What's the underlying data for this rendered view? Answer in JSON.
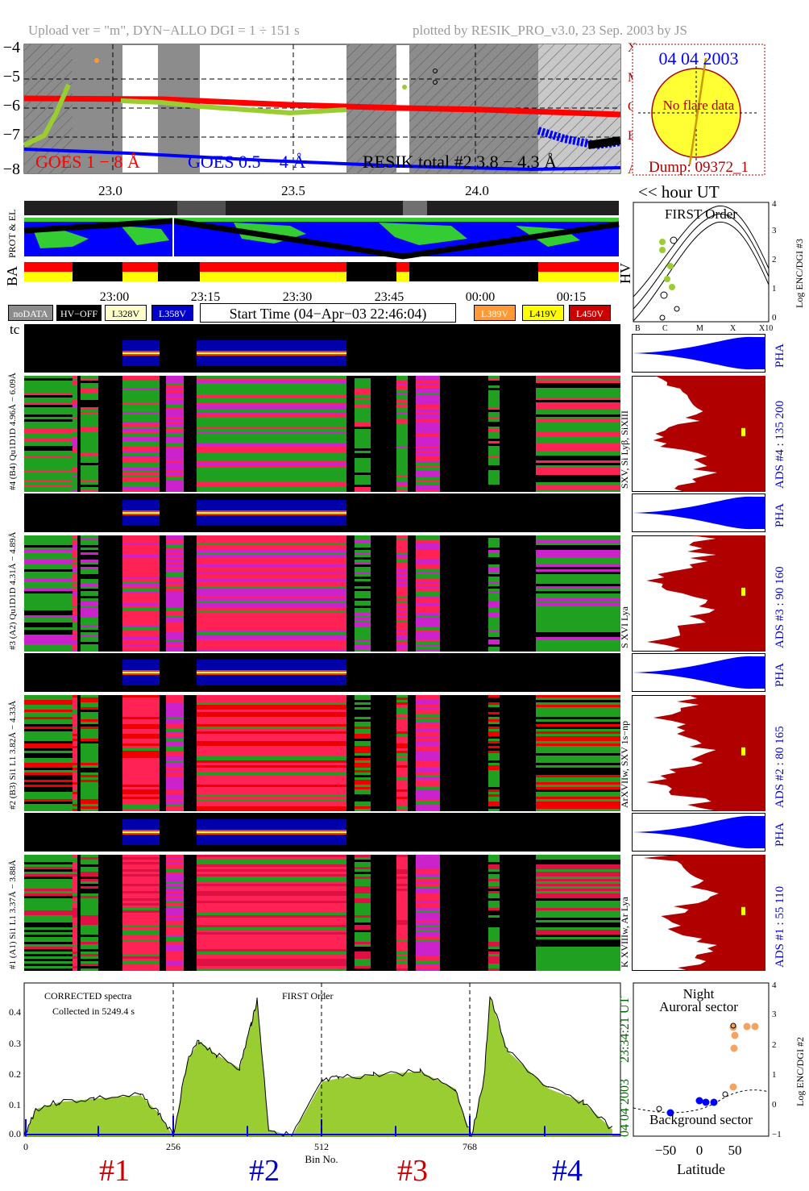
{
  "header": {
    "left": "Upload ver = \"m\", DYN−ALLO DGI =   1 ÷ 151 s",
    "right": "plotted by RESIK_PRO_v3.0, 23 Sep. 2003 by JS"
  },
  "goes": {
    "yticks": [
      "−4",
      "−5",
      "−6",
      "−7",
      "−8"
    ],
    "class_letters": [
      "X",
      "M",
      "C",
      "B",
      "A"
    ],
    "xticks": [
      "23.0",
      "23.5",
      "24.0"
    ],
    "legend_goes1": "GOES 1 − 8 Å",
    "legend_goes05": "GOES 0.5 − 4 Å",
    "legend_resik": "RESIK total #2  3.8 − 4.3 Å",
    "hour_label": "<< hour UT"
  },
  "sun": {
    "date": "04 04 2003",
    "flare": "No flare data",
    "dump": "Dump: 09372_1"
  },
  "status": {
    "prot_label": "PROT & EL",
    "ba_label": "BA",
    "hv_label": "HV",
    "time_ticks": [
      "23:00",
      "23:15",
      "23:30",
      "23:45",
      "00:00",
      "00:15"
    ]
  },
  "legend_buttons": {
    "nodata": "noDATA",
    "hvoff": "HV−OFF",
    "l328": "L328V",
    "l358": "L358V",
    "start_time": "Start Time (04−Apr−03 22:46:04)",
    "l389": "L389V",
    "l419": "L419V",
    "l450": "L450V"
  },
  "first_order": {
    "title": "FIRST Order",
    "ylabel": "Log ENC/DGI #3",
    "yticks": [
      "4",
      "3",
      "2",
      "1",
      "0"
    ],
    "xticks": [
      "B",
      "C",
      "M",
      "X",
      "X10"
    ]
  },
  "tc_label": "tc",
  "channels": [
    {
      "pha_label": "Qu1D1D 4.96Å − 6.09Å",
      "ads_label": "#4 (B4) Qu1D1D 4.96Å − 6.09Å",
      "ions": "SXV, Si Lyβ, SiXIII",
      "ads": "ADS #4 :   135 200"
    },
    {
      "pha_label": "Qu1D1D 4.31Å − 4.89Å",
      "ads_label": "#3 (A2) Qu1D1D 4.31Å − 4.89Å",
      "ions": "S XVI Lya",
      "ads": "ADS #3 :    90 160"
    },
    {
      "pha_label": "Si1 L1 3.82Å − 4.33Å",
      "ads_label": "#2 (B3) Si1 L1 3.82Å − 4.33Å",
      "ions": "ArXVIIw, SXV 1s−np",
      "ads": "ADS #2 :    80 165"
    },
    {
      "pha_label": "Si1 L1 3.37Å − 3.88Å",
      "ads_label": "#1 (A1) Si1 L1 3.37Å − 3.88Å",
      "ions": "K XVIIIw, Ar Lya",
      "ads": "ADS #1 :    55 110"
    }
  ],
  "pha_label": "PHA",
  "spectrum": {
    "note1": "CORRECTED spectra",
    "note2": "Collected in  5249.4 s",
    "first_order": "FIRST Order",
    "xlabel": "Bin No.",
    "xticks": [
      "0",
      "256",
      "512",
      "768"
    ],
    "yticks": [
      "0.4",
      "0.3",
      "0.2",
      "0.1",
      "0.0"
    ],
    "side_time": "23:34:21 UT",
    "side_date": "04 04 2003",
    "channel_marks": [
      "#1",
      "#2",
      "#3",
      "#4"
    ]
  },
  "latitude": {
    "night": "Night",
    "auroral": "Auroral sector",
    "background": "Background sector",
    "xlabel": "Latitude",
    "xticks": [
      "−50",
      "0",
      "50"
    ],
    "yticks": [
      "4",
      "3",
      "2",
      "1",
      "0",
      "−1"
    ],
    "ylabel": "Log ENC/DGI #2"
  },
  "colors": {
    "goes1": "#ff0000",
    "goes05": "#0000ff",
    "resik": "#9acd32",
    "ads_fill": "#b00000",
    "pha_fill": "#0000ff",
    "grey_band": "#8c8c8c",
    "channel1": "#cc0000",
    "channel2": "#0000cc",
    "channel3": "#cc0000",
    "channel4": "#0000cc"
  },
  "chart_data": {
    "type": "line",
    "title": "",
    "xlabel": "Bin No.",
    "ylabel": "",
    "xlim": [
      0,
      1024
    ],
    "ylim": [
      0,
      0.45
    ],
    "x": [
      0,
      20,
      60,
      120,
      200,
      230,
      256,
      280,
      300,
      330,
      370,
      390,
      400,
      420,
      460,
      512,
      540,
      600,
      680,
      740,
      768,
      790,
      800,
      830,
      900,
      960,
      1010
    ],
    "series": [
      {
        "values": [
          0.0,
          0.08,
          0.1,
          0.11,
          0.12,
          0.07,
          0.0,
          0.22,
          0.28,
          0.24,
          0.2,
          0.33,
          0.4,
          0.02,
          0.0,
          0.16,
          0.17,
          0.18,
          0.19,
          0.14,
          0.0,
          0.17,
          0.41,
          0.25,
          0.14,
          0.1,
          0.02
        ]
      }
    ]
  }
}
